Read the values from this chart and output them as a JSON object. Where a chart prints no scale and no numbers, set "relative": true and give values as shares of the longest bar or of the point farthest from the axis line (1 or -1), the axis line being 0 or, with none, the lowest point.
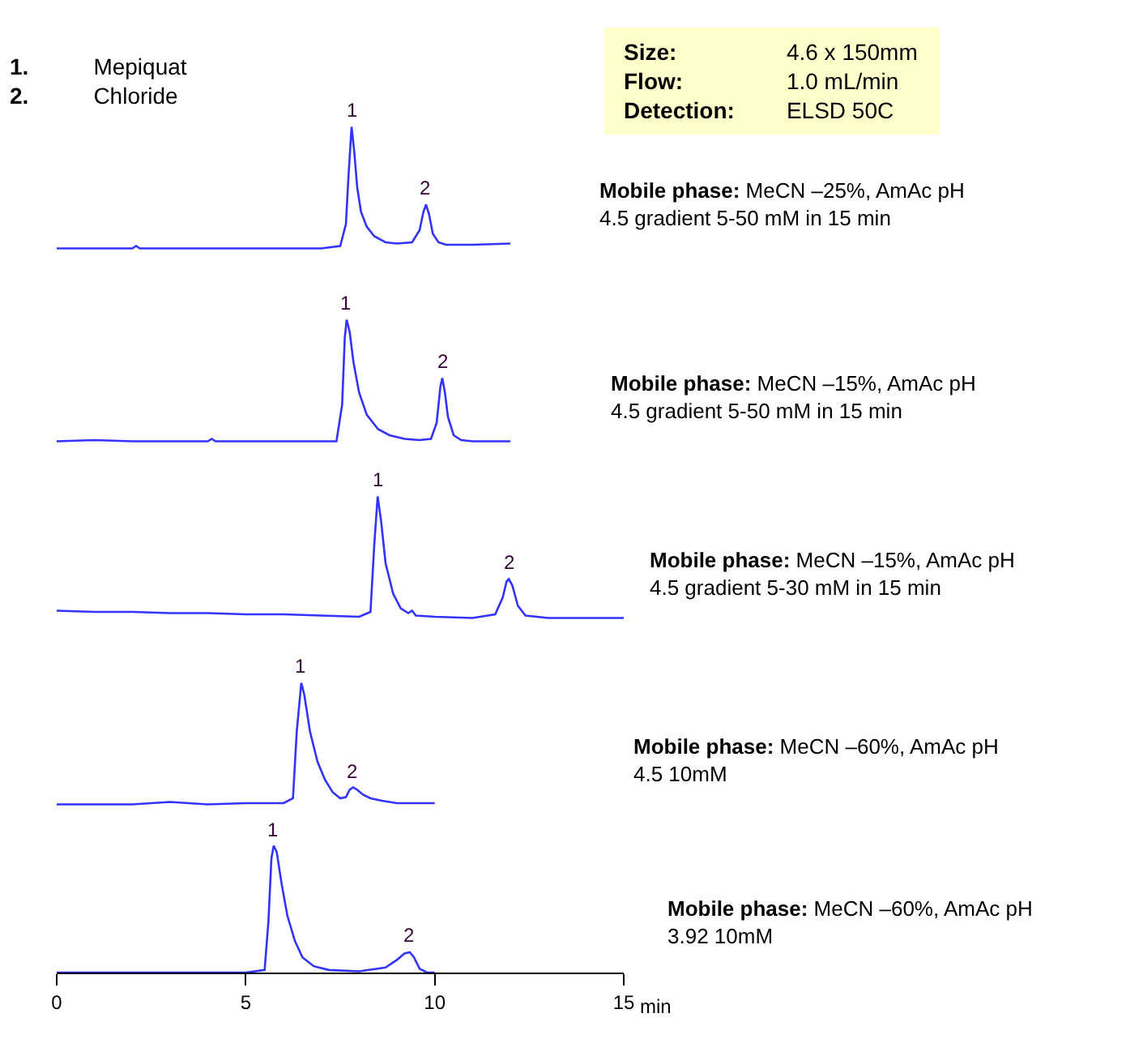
{
  "chart_data": [
    {
      "type": "other",
      "annotations": [
        "1. Mepiquat",
        "2. Chloride"
      ]
    },
    {
      "type": "other",
      "annotations": [
        "Size: 4.6 x 150mm",
        "Flow: 1.0 mL/min",
        "Detection: ELSD 50C"
      ]
    },
    {
      "type": "line",
      "relative": true,
      "xlim": [
        0,
        15
      ],
      "tick_labels": false,
      "series": [
        {
          "color": "#3333ff",
          "x": [
            0,
            1,
            2,
            2.1,
            2.2,
            3,
            4,
            5,
            6,
            7,
            7.5,
            7.65,
            7.72,
            7.8,
            7.87,
            7.95,
            8.05,
            8.2,
            8.4,
            8.7,
            9,
            9.4,
            9.6,
            9.7,
            9.77,
            9.85,
            9.95,
            10.1,
            10.3,
            11,
            12
          ],
          "values": [
            0,
            0,
            0,
            0.02,
            0,
            0,
            0,
            0,
            0,
            0,
            0.02,
            0.2,
            0.6,
            1,
            0.8,
            0.5,
            0.3,
            0.18,
            0.1,
            0.05,
            0.04,
            0.05,
            0.15,
            0.3,
            0.36,
            0.28,
            0.12,
            0.05,
            0.03,
            0.03,
            0.04
          ]
        }
      ],
      "annotations": [
        "Mobile phase: MeCN –25%, AmAc pH 4.5 gradient 5-50 mM in 15 min",
        {
          "text": "1",
          "x": 7.8,
          "y": 1
        },
        {
          "text": "2",
          "x": 9.77,
          "y": 0.36
        }
      ]
    },
    {
      "type": "line",
      "relative": true,
      "xlim": [
        0,
        15
      ],
      "tick_labels": false,
      "series": [
        {
          "color": "#3333ff",
          "x": [
            0,
            1,
            2,
            3,
            4,
            4.1,
            4.2,
            5,
            6,
            7,
            7.4,
            7.55,
            7.62,
            7.67,
            7.75,
            7.85,
            8,
            8.2,
            8.5,
            8.8,
            9.2,
            9.6,
            9.9,
            10.05,
            10.15,
            10.2,
            10.27,
            10.35,
            10.5,
            10.7,
            11,
            12
          ],
          "values": [
            0,
            0.01,
            0,
            0,
            0,
            0.02,
            0,
            0,
            0,
            0,
            0,
            0.3,
            0.85,
            1,
            0.9,
            0.65,
            0.4,
            0.22,
            0.1,
            0.05,
            0.02,
            0.01,
            0.02,
            0.15,
            0.45,
            0.52,
            0.4,
            0.2,
            0.05,
            0.01,
            0,
            0
          ]
        }
      ],
      "annotations": [
        "Mobile phase: MeCN –15%, AmAc pH 4.5 gradient 5-50 mM in 15 min",
        {
          "text": "1",
          "x": 7.67,
          "y": 1
        },
        {
          "text": "2",
          "x": 10.2,
          "y": 0.52
        }
      ]
    },
    {
      "type": "line",
      "relative": true,
      "xlim": [
        0,
        15
      ],
      "tick_labels": false,
      "series": [
        {
          "color": "#3333ff",
          "x": [
            0,
            1,
            2,
            3,
            4,
            5,
            6,
            7,
            8,
            8.3,
            8.4,
            8.49,
            8.58,
            8.7,
            8.9,
            9.1,
            9.3,
            9.4,
            9.5,
            10,
            11,
            11.6,
            11.8,
            11.9,
            11.96,
            12.05,
            12.2,
            12.4,
            13,
            14,
            15
          ],
          "values": [
            0.06,
            0.05,
            0.05,
            0.04,
            0.04,
            0.03,
            0.03,
            0.02,
            0.01,
            0.05,
            0.6,
            1,
            0.8,
            0.45,
            0.2,
            0.08,
            0.04,
            0.06,
            0.02,
            0.01,
            0,
            0.03,
            0.17,
            0.3,
            0.32,
            0.27,
            0.1,
            0.02,
            0,
            0,
            0
          ]
        }
      ],
      "annotations": [
        "Mobile phase: MeCN –15%, AmAc pH 4.5 gradient 5-30 mM in 15 min",
        {
          "text": "1",
          "x": 8.49,
          "y": 1
        },
        {
          "text": "2",
          "x": 11.96,
          "y": 0.32
        }
      ]
    },
    {
      "type": "line",
      "relative": true,
      "xlim": [
        0,
        15
      ],
      "tick_labels": false,
      "series": [
        {
          "color": "#3333ff",
          "x": [
            0,
            1,
            2,
            3,
            4,
            5,
            6,
            6.25,
            6.35,
            6.47,
            6.55,
            6.7,
            6.9,
            7.1,
            7.3,
            7.5,
            7.65,
            7.75,
            7.84,
            7.95,
            8.1,
            8.3,
            8.6,
            9,
            10
          ],
          "values": [
            0,
            0,
            0,
            0.02,
            0,
            0.01,
            0.01,
            0.05,
            0.6,
            1,
            0.9,
            0.6,
            0.35,
            0.2,
            0.1,
            0.05,
            0.06,
            0.12,
            0.14,
            0.12,
            0.08,
            0.05,
            0.03,
            0.01,
            0.01
          ]
        }
      ],
      "annotations": [
        "Mobile phase: MeCN –60%, AmAc pH 4.5 10mM",
        {
          "text": "1",
          "x": 6.47,
          "y": 1
        },
        {
          "text": "2",
          "x": 7.84,
          "y": 0.14
        }
      ]
    },
    {
      "type": "line",
      "relative": true,
      "xlim": [
        0,
        15
      ],
      "xticks": [
        0,
        5,
        10,
        15
      ],
      "xlabel": "min",
      "tick_labels": "x",
      "series": [
        {
          "color": "#3333ff",
          "x": [
            0,
            1,
            2,
            3,
            4,
            5,
            5.5,
            5.6,
            5.68,
            5.74,
            5.82,
            5.95,
            6.1,
            6.3,
            6.5,
            6.8,
            7.2,
            8,
            8.7,
            9,
            9.2,
            9.34,
            9.45,
            9.6,
            9.8,
            10
          ],
          "values": [
            0,
            0,
            0,
            0,
            0,
            0,
            0.02,
            0.4,
            0.9,
            1,
            0.95,
            0.7,
            0.45,
            0.25,
            0.12,
            0.05,
            0.02,
            0.01,
            0.04,
            0.1,
            0.15,
            0.16,
            0.12,
            0.03,
            0,
            0
          ]
        }
      ],
      "annotations": [
        "Mobile phase: MeCN –60%, AmAc pH 3.92 10mM",
        {
          "text": "1",
          "x": 5.74,
          "y": 1
        },
        {
          "text": "2",
          "x": 9.34,
          "y": 0.16
        }
      ]
    }
  ]
}
